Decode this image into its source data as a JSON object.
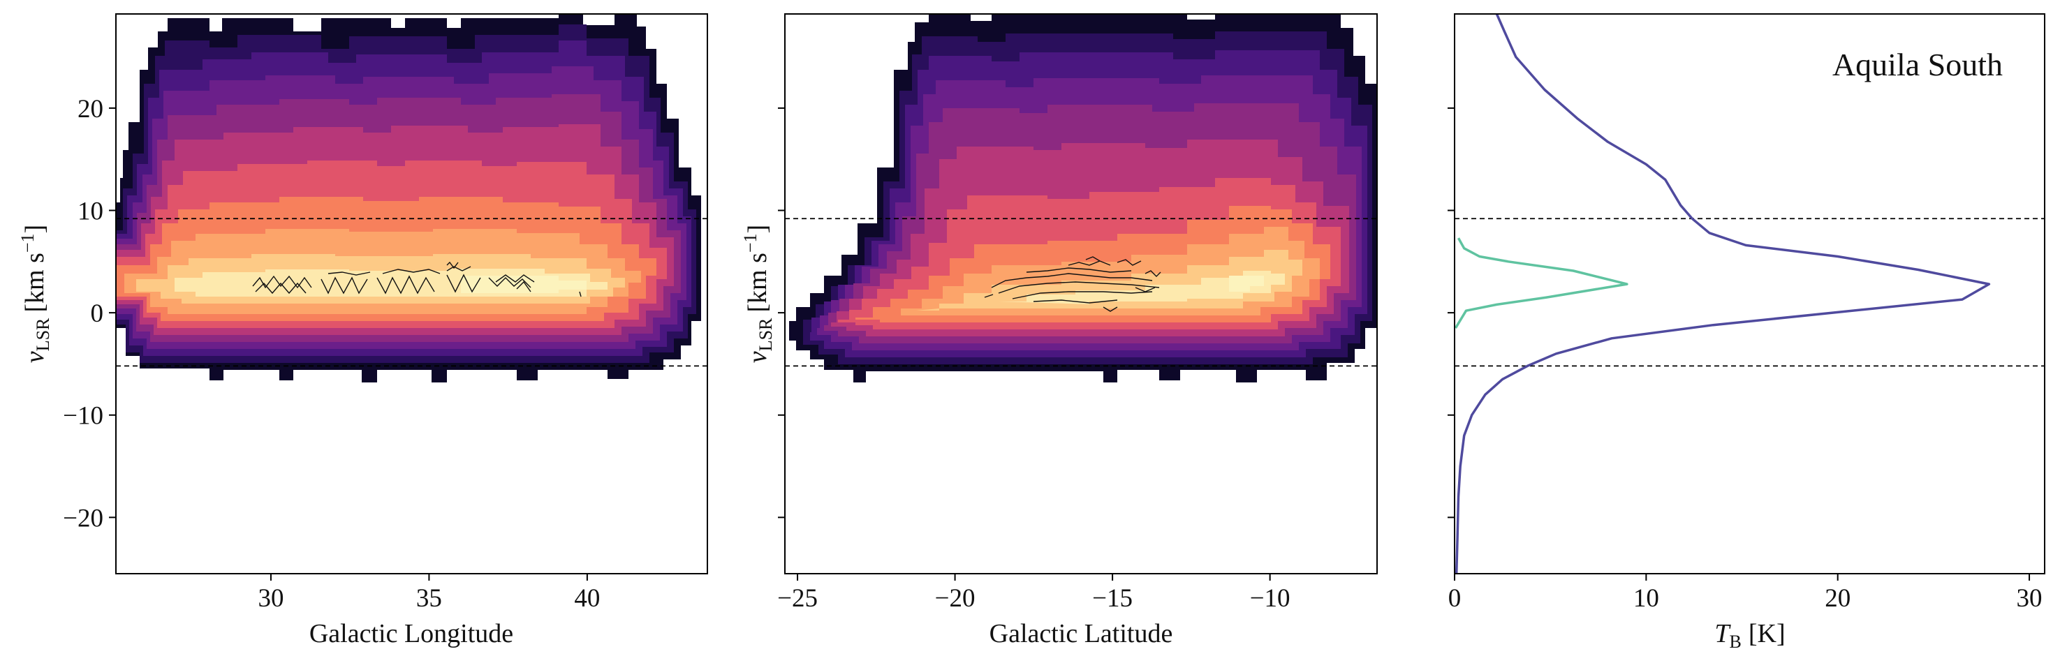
{
  "chart_data": [
    {
      "type": "heatmap",
      "panel": "left",
      "xlabel": "Galactic Longitude",
      "ylabel_main": "v",
      "ylabel_sub": "LSR",
      "ylabel_units_pre": "[km s",
      "ylabel_units_sup": "−1",
      "ylabel_units_post": "]",
      "xlim": [
        25.1,
        43.8
      ],
      "ylim": [
        -25.5,
        29.2
      ],
      "xticks": [
        30,
        35,
        40
      ],
      "xtick_labels": [
        "30",
        "35",
        "40"
      ],
      "yticks": [
        -20,
        -10,
        0,
        10,
        20
      ],
      "ytick_labels": [
        "−20",
        "−10",
        "0",
        "10",
        "20"
      ],
      "hlines": [
        9.2,
        -5.2
      ],
      "colormap": "magma",
      "contours": "black line contours around peak emission near v = 2–5"
    },
    {
      "type": "heatmap",
      "panel": "middle",
      "xlabel": "Galactic Latitude",
      "ylabel_main": "v",
      "ylabel_sub": "LSR",
      "ylabel_units_pre": "[km s",
      "ylabel_units_sup": "−1",
      "ylabel_units_post": "]",
      "xlim": [
        -25.4,
        -6.6
      ],
      "ylim": [
        -25.5,
        29.2
      ],
      "xticks": [
        -25,
        -20,
        -15,
        -10
      ],
      "xtick_labels": [
        "−25",
        "−20",
        "−15",
        "−10"
      ],
      "yticks": [
        -20,
        -10,
        0,
        10,
        20
      ],
      "hlines": [
        9.2,
        -5.2
      ],
      "colormap": "magma",
      "contours": "black line contours around peak emission near v = 2–5"
    },
    {
      "type": "line",
      "panel": "right",
      "xlabel_main": "T",
      "xlabel_sub": "B",
      "xlabel_units": "[K]",
      "annotation": "Aquila South",
      "xlim": [
        0,
        30.8
      ],
      "ylim": [
        -25.5,
        29.2
      ],
      "xticks": [
        0,
        10,
        20,
        30
      ],
      "xtick_labels": [
        "0",
        "10",
        "20",
        "30"
      ],
      "yticks": [
        -20,
        -10,
        0,
        10,
        20
      ],
      "hlines": [
        9.2,
        -5.2
      ],
      "series": [
        {
          "color": "#4f4a9e",
          "points": [
            [
              0.1,
              -25.5
            ],
            [
              0.15,
              -22
            ],
            [
              0.2,
              -18
            ],
            [
              0.3,
              -15
            ],
            [
              0.5,
              -12
            ],
            [
              0.9,
              -10
            ],
            [
              1.6,
              -8
            ],
            [
              2.5,
              -6.5
            ],
            [
              3.8,
              -5.2
            ],
            [
              5.3,
              -4
            ],
            [
              8.2,
              -2.5
            ],
            [
              13.5,
              -1.2
            ],
            [
              26.5,
              1.3
            ],
            [
              27.9,
              2.8
            ],
            [
              24.2,
              4.2
            ],
            [
              20.0,
              5.5
            ],
            [
              15.2,
              6.6
            ],
            [
              13.3,
              7.8
            ],
            [
              12.4,
              9.2
            ],
            [
              11.8,
              10.5
            ],
            [
              11.0,
              13.0
            ],
            [
              10.0,
              14.5
            ],
            [
              8.0,
              16.7
            ],
            [
              6.4,
              19.0
            ],
            [
              4.7,
              21.8
            ],
            [
              3.2,
              25.0
            ],
            [
              2.6,
              27.5
            ],
            [
              2.2,
              29.2
            ]
          ]
        },
        {
          "color": "#5fc3a0",
          "points": [
            [
              0.05,
              -1.5
            ],
            [
              0.6,
              0.2
            ],
            [
              2.2,
              0.8
            ],
            [
              4.8,
              1.5
            ],
            [
              9.0,
              2.8
            ],
            [
              6.2,
              4.1
            ],
            [
              2.8,
              5.0
            ],
            [
              1.3,
              5.5
            ],
            [
              0.5,
              6.3
            ],
            [
              0.2,
              7.3
            ]
          ]
        }
      ]
    }
  ]
}
